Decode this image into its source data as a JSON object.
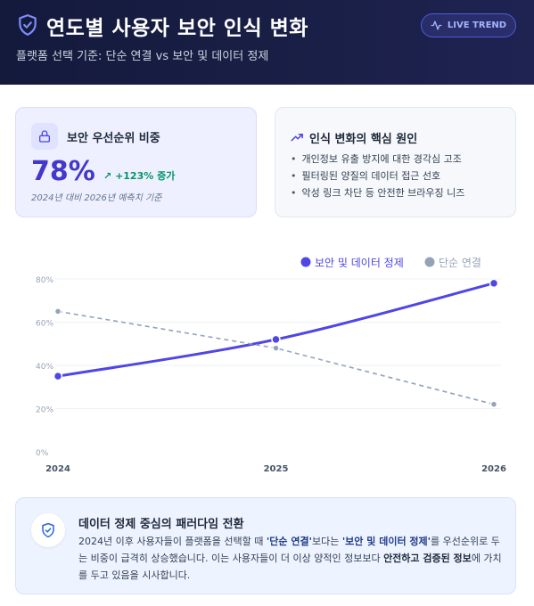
{
  "header": {
    "title": "연도별 사용자 보안 인식 변화",
    "subtitle": "플랫폼 선택 기준: 단순 연결 vs 보안 및 데이터 정제",
    "badge": "LIVE TREND"
  },
  "stat_card": {
    "label": "보안 우선순위 비중",
    "value": "78%",
    "growth": "+123% 증가",
    "note": "2024년 대비 2026년 예측치 기준"
  },
  "reasons_card": {
    "title": "인식 변화의 핵심 원인",
    "items": [
      "개인정보 유출 방지에 대한 경각심 고조",
      "필터링된 양질의 데이터 접근 선호",
      "악성 링크 차단 등 안전한 브라우징 니즈"
    ]
  },
  "chart_data": {
    "type": "line",
    "x": [
      "2024",
      "2025",
      "2026"
    ],
    "ylim": [
      0,
      80
    ],
    "yticks": [
      "0%",
      "20%",
      "40%",
      "60%",
      "80%"
    ],
    "legend_position": "top-right",
    "series": [
      {
        "name": "보안 및 데이터 정제",
        "values": [
          35,
          52,
          78
        ],
        "color": "#4f46e5",
        "style": "solid-curve"
      },
      {
        "name": "단순 연결",
        "values": [
          65,
          48,
          22
        ],
        "color": "#94a3b8",
        "style": "dashed"
      }
    ]
  },
  "insight": {
    "title": "데이터 정제 중심의 패러다임 전환",
    "p1": "2024년 이후 사용자들이 플랫폼을 선택할 때 ",
    "q1": "'단순 연결'",
    "p2": "보다는 ",
    "q2": "'보안 및 데이터 정제'",
    "p3": "를 우선순위로 두는 비중이 급격히 상승했습니다. 이는 사용자들이 더 이상 양적인 정보보다 ",
    "s1": "안전하고 검증된 정보",
    "p4": "에 가치를 두고 있음을 시사합니다."
  },
  "colors": {
    "header_bg": "#1a1f47",
    "accent": "#4f46e5",
    "muted_series": "#94a3b8",
    "positive": "#059669"
  }
}
